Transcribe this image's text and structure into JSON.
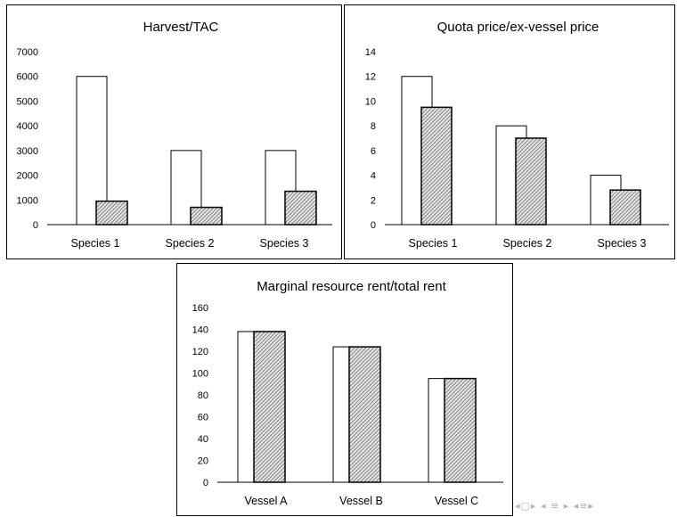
{
  "chart_data": [
    {
      "type": "bar",
      "title": "Harvest/TAC",
      "categories": [
        "Species 1",
        "Species 2",
        "Species 3"
      ],
      "series": [
        {
          "values": [
            6000,
            3000,
            3000
          ],
          "fill": "#ffffff"
        },
        {
          "values": [
            950,
            700,
            1350
          ],
          "fill": "hatch"
        }
      ],
      "ylim": [
        0,
        7000
      ],
      "yticks": [
        0,
        1000,
        2000,
        3000,
        4000,
        5000,
        6000,
        7000
      ],
      "grid": false
    },
    {
      "type": "bar",
      "title": "Quota price/ex-vessel price",
      "categories": [
        "Species 1",
        "Species 2",
        "Species 3"
      ],
      "series": [
        {
          "values": [
            12,
            8,
            4
          ],
          "fill": "#ffffff"
        },
        {
          "values": [
            9.5,
            7,
            2.8
          ],
          "fill": "hatch"
        }
      ],
      "ylim": [
        0,
        14
      ],
      "yticks": [
        0,
        2,
        4,
        6,
        8,
        10,
        12,
        14
      ],
      "grid": false
    },
    {
      "type": "bar",
      "title": "Marginal resource rent/total rent",
      "categories": [
        "Vessel A",
        "Vessel B",
        "Vessel C"
      ],
      "series": [
        {
          "values": [
            138,
            124,
            95
          ],
          "fill": "#ffffff"
        },
        {
          "values": [
            138,
            124,
            95
          ],
          "fill": "hatch"
        }
      ],
      "ylim": [
        0,
        160
      ],
      "yticks": [
        0,
        20,
        40,
        60,
        80,
        100,
        120,
        140,
        160
      ],
      "grid": false
    }
  ],
  "colors": {
    "bar_outline": "#000000",
    "hatch": "#555555",
    "nav": "#aab3d6"
  },
  "nav_icons": [
    "page-nav-icon",
    "arrow-left-icon",
    "arrow-right-icon",
    "section-icon",
    "subsection-icon"
  ]
}
